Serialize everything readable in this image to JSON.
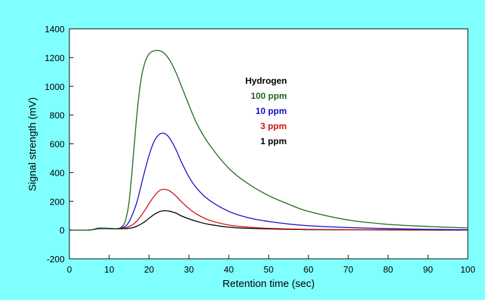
{
  "chart_data": {
    "type": "line",
    "title": "",
    "xlabel": "Retention time (sec)",
    "ylabel": "Signal strength (mV)",
    "xlim": [
      0,
      100
    ],
    "ylim": [
      -200,
      1400
    ],
    "xticks": [
      0,
      10,
      20,
      30,
      40,
      50,
      60,
      70,
      80,
      90,
      100
    ],
    "yticks": [
      -200,
      0,
      200,
      400,
      600,
      800,
      1000,
      1200,
      1400
    ],
    "grid": false,
    "legend": {
      "title": "Hydrogen",
      "placement": "upper-middle",
      "entries": [
        "100 ppm",
        "10 ppm",
        "3 ppm",
        "1 ppm"
      ]
    },
    "colors": {
      "background": "#80FFFF",
      "plot_area": "#FFFFFF",
      "100 ppm": "#1E6B1E",
      "10 ppm": "#1414C8",
      "3 ppm": "#D21414",
      "1 ppm": "#000000"
    },
    "series": [
      {
        "name": "100 ppm",
        "x": [
          0,
          5,
          7,
          8,
          10,
          12,
          13,
          14,
          15,
          16,
          17,
          18,
          19,
          20,
          21,
          22,
          23,
          24,
          25,
          26,
          27,
          28,
          30,
          32,
          35,
          40,
          45,
          50,
          55,
          60,
          70,
          80,
          90,
          100
        ],
        "y": [
          0,
          0,
          10,
          12,
          11,
          10,
          20,
          60,
          200,
          500,
          820,
          1050,
          1170,
          1225,
          1245,
          1250,
          1245,
          1225,
          1190,
          1140,
          1080,
          1010,
          870,
          740,
          600,
          430,
          320,
          240,
          180,
          130,
          70,
          40,
          25,
          15
        ]
      },
      {
        "name": "10 ppm",
        "x": [
          0,
          5,
          7,
          8,
          10,
          12,
          14,
          15,
          16,
          17,
          18,
          19,
          20,
          21,
          22,
          23,
          24,
          25,
          26,
          27,
          28,
          30,
          32,
          35,
          40,
          45,
          50,
          55,
          60,
          70,
          80,
          90,
          100
        ],
        "y": [
          0,
          0,
          12,
          14,
          12,
          10,
          25,
          60,
          120,
          200,
          310,
          420,
          520,
          600,
          650,
          672,
          670,
          645,
          600,
          545,
          480,
          370,
          290,
          210,
          130,
          85,
          60,
          42,
          30,
          18,
          10,
          5,
          2
        ]
      },
      {
        "name": "3 ppm",
        "x": [
          0,
          5,
          7,
          8,
          10,
          12,
          14,
          15,
          16,
          17,
          18,
          19,
          20,
          21,
          22,
          23,
          24,
          25,
          26,
          27,
          28,
          30,
          32,
          35,
          40,
          45,
          50,
          55,
          60,
          70,
          80,
          90,
          100
        ],
        "y": [
          0,
          0,
          12,
          14,
          12,
          10,
          15,
          25,
          40,
          65,
          100,
          140,
          185,
          225,
          260,
          280,
          283,
          275,
          255,
          230,
          200,
          150,
          110,
          70,
          35,
          20,
          12,
          8,
          5,
          3,
          2,
          1,
          0
        ]
      },
      {
        "name": "1 ppm",
        "x": [
          0,
          5,
          7,
          8,
          10,
          12,
          14,
          15,
          16,
          17,
          18,
          19,
          20,
          21,
          22,
          23,
          24,
          25,
          26,
          27,
          28,
          30,
          32,
          35,
          40,
          45,
          50,
          55,
          60,
          70,
          80,
          90,
          100
        ],
        "y": [
          0,
          0,
          8,
          10,
          9,
          8,
          10,
          12,
          18,
          28,
          42,
          60,
          82,
          103,
          120,
          132,
          135,
          132,
          125,
          115,
          100,
          78,
          60,
          40,
          20,
          12,
          8,
          5,
          3,
          2,
          1,
          0,
          0
        ]
      }
    ]
  }
}
